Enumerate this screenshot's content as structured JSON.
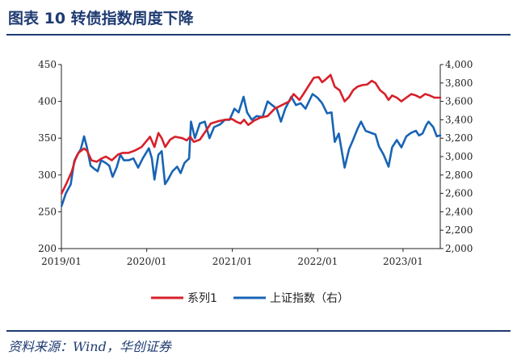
{
  "figure": {
    "title": "图表 10  转债指数周度下降",
    "source": "资料来源：Wind，华创证券"
  },
  "chart_data": {
    "type": "line",
    "left_axis": {
      "ylim": [
        200,
        450
      ],
      "ticks": [
        "450",
        "400",
        "350",
        "300",
        "250",
        "200"
      ]
    },
    "right_axis": {
      "ylim": [
        2000,
        4000
      ],
      "ticks": [
        "4,000",
        "3,800",
        "3,600",
        "3,400",
        "3,200",
        "3,000",
        "2,800",
        "2,600",
        "2,400",
        "2,200",
        "2,000"
      ]
    },
    "x_axis": {
      "range": [
        "2019-01-01",
        "2023-06-09"
      ],
      "ticks": [
        "2019/01",
        "2020/01",
        "2021/01",
        "2022/01",
        "2023/01"
      ]
    },
    "grid": false,
    "legend_position": "bottom",
    "series": [
      {
        "name": "系列1",
        "axis": "left",
        "color": "#d7202a",
        "points": [
          [
            "2019-01-02",
            275
          ],
          [
            "2019-01-25",
            290
          ],
          [
            "2019-02-15",
            305
          ],
          [
            "2019-02-28",
            320
          ],
          [
            "2019-03-15",
            330
          ],
          [
            "2019-04-08",
            336
          ],
          [
            "2019-04-20",
            333
          ],
          [
            "2019-05-10",
            320
          ],
          [
            "2019-06-01",
            318
          ],
          [
            "2019-06-20",
            322
          ],
          [
            "2019-07-10",
            325
          ],
          [
            "2019-08-05",
            320
          ],
          [
            "2019-09-01",
            328
          ],
          [
            "2019-09-20",
            330
          ],
          [
            "2019-10-15",
            330
          ],
          [
            "2019-11-10",
            333
          ],
          [
            "2019-12-10",
            338
          ],
          [
            "2020-01-15",
            352
          ],
          [
            "2020-02-03",
            338
          ],
          [
            "2020-02-20",
            357
          ],
          [
            "2020-03-05",
            350
          ],
          [
            "2020-03-20",
            338
          ],
          [
            "2020-04-10",
            348
          ],
          [
            "2020-05-01",
            352
          ],
          [
            "2020-06-01",
            350
          ],
          [
            "2020-06-20",
            347
          ],
          [
            "2020-07-05",
            352
          ],
          [
            "2020-07-20",
            345
          ],
          [
            "2020-08-15",
            348
          ],
          [
            "2020-09-10",
            360
          ],
          [
            "2020-10-01",
            370
          ],
          [
            "2020-11-01",
            373
          ],
          [
            "2020-12-01",
            375
          ],
          [
            "2020-12-31",
            376
          ],
          [
            "2021-01-20",
            372
          ],
          [
            "2021-02-05",
            370
          ],
          [
            "2021-02-20",
            375
          ],
          [
            "2021-03-10",
            368
          ],
          [
            "2021-04-05",
            374
          ],
          [
            "2021-05-01",
            378
          ],
          [
            "2021-06-01",
            380
          ],
          [
            "2021-07-01",
            390
          ],
          [
            "2021-08-01",
            395
          ],
          [
            "2021-09-01",
            400
          ],
          [
            "2021-09-20",
            410
          ],
          [
            "2021-10-15",
            402
          ],
          [
            "2021-11-01",
            410
          ],
          [
            "2021-11-25",
            422
          ],
          [
            "2021-12-15",
            432
          ],
          [
            "2022-01-05",
            433
          ],
          [
            "2022-01-20",
            426
          ],
          [
            "2022-02-05",
            430
          ],
          [
            "2022-02-25",
            436
          ],
          [
            "2022-03-15",
            420
          ],
          [
            "2022-04-05",
            415
          ],
          [
            "2022-04-26",
            400
          ],
          [
            "2022-05-15",
            406
          ],
          [
            "2022-06-01",
            415
          ],
          [
            "2022-06-20",
            420
          ],
          [
            "2022-07-10",
            422
          ],
          [
            "2022-08-01",
            423
          ],
          [
            "2022-08-20",
            428
          ],
          [
            "2022-09-05",
            425
          ],
          [
            "2022-09-25",
            415
          ],
          [
            "2022-10-15",
            410
          ],
          [
            "2022-10-31",
            402
          ],
          [
            "2022-11-15",
            408
          ],
          [
            "2022-12-05",
            405
          ],
          [
            "2022-12-25",
            400
          ],
          [
            "2023-01-15",
            405
          ],
          [
            "2023-02-05",
            410
          ],
          [
            "2023-02-25",
            408
          ],
          [
            "2023-03-15",
            405
          ],
          [
            "2023-04-05",
            410
          ],
          [
            "2023-04-25",
            408
          ],
          [
            "2023-05-15",
            405
          ],
          [
            "2023-06-09",
            405
          ]
        ]
      },
      {
        "name": "上证指数（右）",
        "axis": "right",
        "color": "#1864b4",
        "points": [
          [
            "2019-01-02",
            2465
          ],
          [
            "2019-01-20",
            2600
          ],
          [
            "2019-02-10",
            2700
          ],
          [
            "2019-02-25",
            2950
          ],
          [
            "2019-03-08",
            3010
          ],
          [
            "2019-03-25",
            3080
          ],
          [
            "2019-04-08",
            3220
          ],
          [
            "2019-04-20",
            3100
          ],
          [
            "2019-05-06",
            2900
          ],
          [
            "2019-05-20",
            2870
          ],
          [
            "2019-06-05",
            2840
          ],
          [
            "2019-06-20",
            2960
          ],
          [
            "2019-07-10",
            2930
          ],
          [
            "2019-07-25",
            2900
          ],
          [
            "2019-08-08",
            2780
          ],
          [
            "2019-08-25",
            2880
          ],
          [
            "2019-09-10",
            3020
          ],
          [
            "2019-09-25",
            2960
          ],
          [
            "2019-10-15",
            2960
          ],
          [
            "2019-11-05",
            2980
          ],
          [
            "2019-11-25",
            2880
          ],
          [
            "2019-12-15",
            2980
          ],
          [
            "2020-01-10",
            3090
          ],
          [
            "2020-01-23",
            2980
          ],
          [
            "2020-02-03",
            2750
          ],
          [
            "2020-02-20",
            3020
          ],
          [
            "2020-03-05",
            3060
          ],
          [
            "2020-03-19",
            2700
          ],
          [
            "2020-04-01",
            2750
          ],
          [
            "2020-04-20",
            2840
          ],
          [
            "2020-05-10",
            2890
          ],
          [
            "2020-05-25",
            2820
          ],
          [
            "2020-06-10",
            2930
          ],
          [
            "2020-06-30",
            2980
          ],
          [
            "2020-07-08",
            3380
          ],
          [
            "2020-07-25",
            3200
          ],
          [
            "2020-08-15",
            3360
          ],
          [
            "2020-09-05",
            3380
          ],
          [
            "2020-09-25",
            3200
          ],
          [
            "2020-10-15",
            3320
          ],
          [
            "2020-11-10",
            3350
          ],
          [
            "2020-11-30",
            3400
          ],
          [
            "2020-12-20",
            3400
          ],
          [
            "2021-01-10",
            3520
          ],
          [
            "2021-01-28",
            3480
          ],
          [
            "2021-02-18",
            3650
          ],
          [
            "2021-03-05",
            3480
          ],
          [
            "2021-03-25",
            3400
          ],
          [
            "2021-04-15",
            3440
          ],
          [
            "2021-05-10",
            3430
          ],
          [
            "2021-06-01",
            3600
          ],
          [
            "2021-06-20",
            3560
          ],
          [
            "2021-07-10",
            3520
          ],
          [
            "2021-07-28",
            3380
          ],
          [
            "2021-08-15",
            3520
          ],
          [
            "2021-09-10",
            3650
          ],
          [
            "2021-09-30",
            3560
          ],
          [
            "2021-10-20",
            3580
          ],
          [
            "2021-11-10",
            3520
          ],
          [
            "2021-12-10",
            3680
          ],
          [
            "2021-12-31",
            3640
          ],
          [
            "2022-01-20",
            3580
          ],
          [
            "2022-02-10",
            3470
          ],
          [
            "2022-03-01",
            3480
          ],
          [
            "2022-03-15",
            3160
          ],
          [
            "2022-04-01",
            3250
          ],
          [
            "2022-04-26",
            2880
          ],
          [
            "2022-05-15",
            3080
          ],
          [
            "2022-06-01",
            3180
          ],
          [
            "2022-06-20",
            3300
          ],
          [
            "2022-07-05",
            3380
          ],
          [
            "2022-07-25",
            3280
          ],
          [
            "2022-08-15",
            3260
          ],
          [
            "2022-09-05",
            3240
          ],
          [
            "2022-09-20",
            3110
          ],
          [
            "2022-10-10",
            3020
          ],
          [
            "2022-10-31",
            2890
          ],
          [
            "2022-11-15",
            3100
          ],
          [
            "2022-12-05",
            3180
          ],
          [
            "2022-12-25",
            3100
          ],
          [
            "2023-01-15",
            3220
          ],
          [
            "2023-02-05",
            3260
          ],
          [
            "2023-02-25",
            3280
          ],
          [
            "2023-03-10",
            3230
          ],
          [
            "2023-03-25",
            3250
          ],
          [
            "2023-04-10",
            3340
          ],
          [
            "2023-04-20",
            3380
          ],
          [
            "2023-05-10",
            3320
          ],
          [
            "2023-05-25",
            3220
          ],
          [
            "2023-06-09",
            3230
          ]
        ]
      }
    ]
  }
}
